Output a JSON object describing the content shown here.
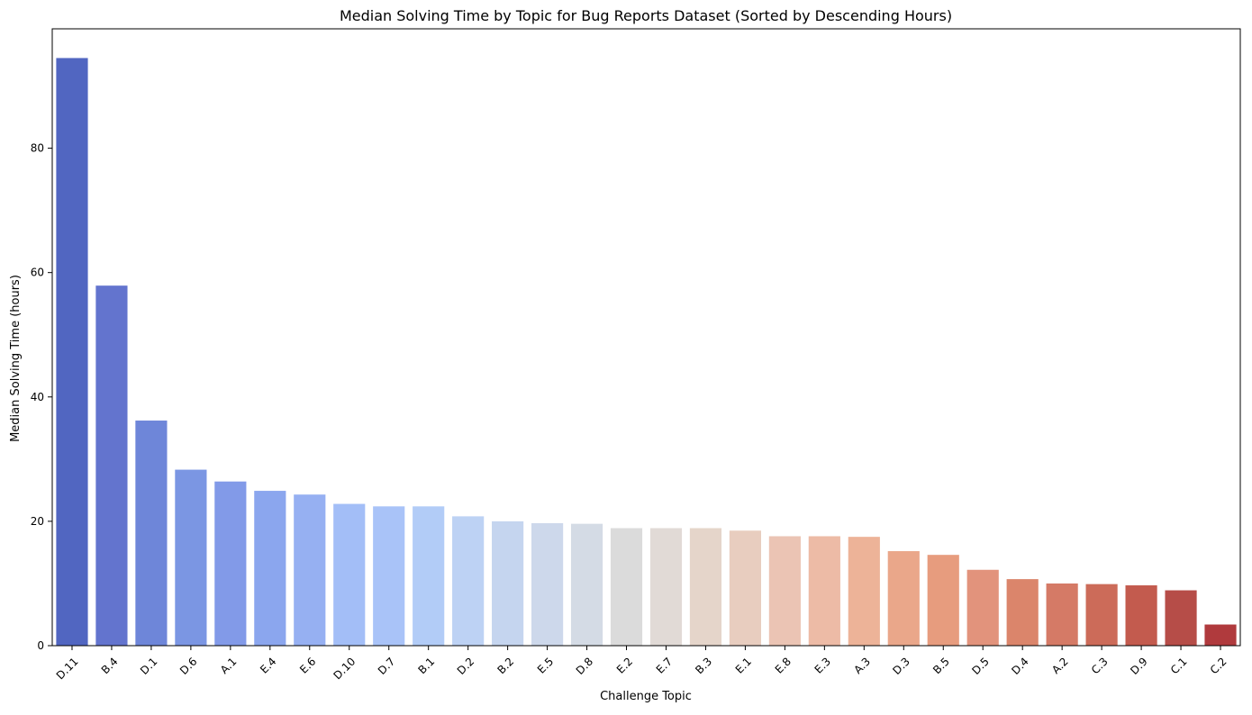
{
  "chart_data": {
    "type": "bar",
    "title": "Median Solving Time by Topic for Bug Reports Dataset (Sorted by Descending Hours)",
    "xlabel": "Challenge Topic",
    "ylabel": "Median Solving Time (hours)",
    "ylim": [
      0,
      99.2
    ],
    "yticks": [
      0,
      20,
      40,
      60,
      80
    ],
    "grid": false,
    "legend": "none",
    "categories": [
      "D.11",
      "B.4",
      "D.1",
      "D.6",
      "A.1",
      "E.4",
      "E.6",
      "D.10",
      "D.7",
      "B.1",
      "D.2",
      "B.2",
      "E.5",
      "D.8",
      "E.2",
      "E.7",
      "B.3",
      "E.1",
      "E.8",
      "E.3",
      "A.3",
      "D.3",
      "B.5",
      "D.5",
      "D.4",
      "A.2",
      "C.3",
      "D.9",
      "C.1",
      "C.2"
    ],
    "values": [
      94.5,
      57.9,
      36.2,
      28.3,
      26.4,
      24.9,
      24.3,
      22.8,
      22.4,
      22.4,
      20.8,
      20.0,
      19.7,
      19.6,
      18.9,
      18.9,
      18.9,
      18.5,
      17.6,
      17.6,
      17.5,
      15.2,
      14.6,
      12.2,
      10.7,
      10.0,
      9.9,
      9.7,
      8.9,
      3.4
    ],
    "colors": [
      "#5166c1",
      "#6374ce",
      "#6e86d9",
      "#7b96e3",
      "#829ae8",
      "#8ba6ee",
      "#96b0f2",
      "#a3bef7",
      "#a9c3f8",
      "#b2ccf7",
      "#bdd2f4",
      "#c5d5ef",
      "#cdd8eb",
      "#d4dbe5",
      "#dbdbdb",
      "#e1dad6",
      "#e5d5ca",
      "#e8cdbf",
      "#ebc4b4",
      "#edbba6",
      "#edb398",
      "#eaa78a",
      "#e79c7e",
      "#e2937c",
      "#db856b",
      "#d57a66",
      "#cc6b59",
      "#c35b4e",
      "#b64d48",
      "#b03a3d"
    ]
  }
}
